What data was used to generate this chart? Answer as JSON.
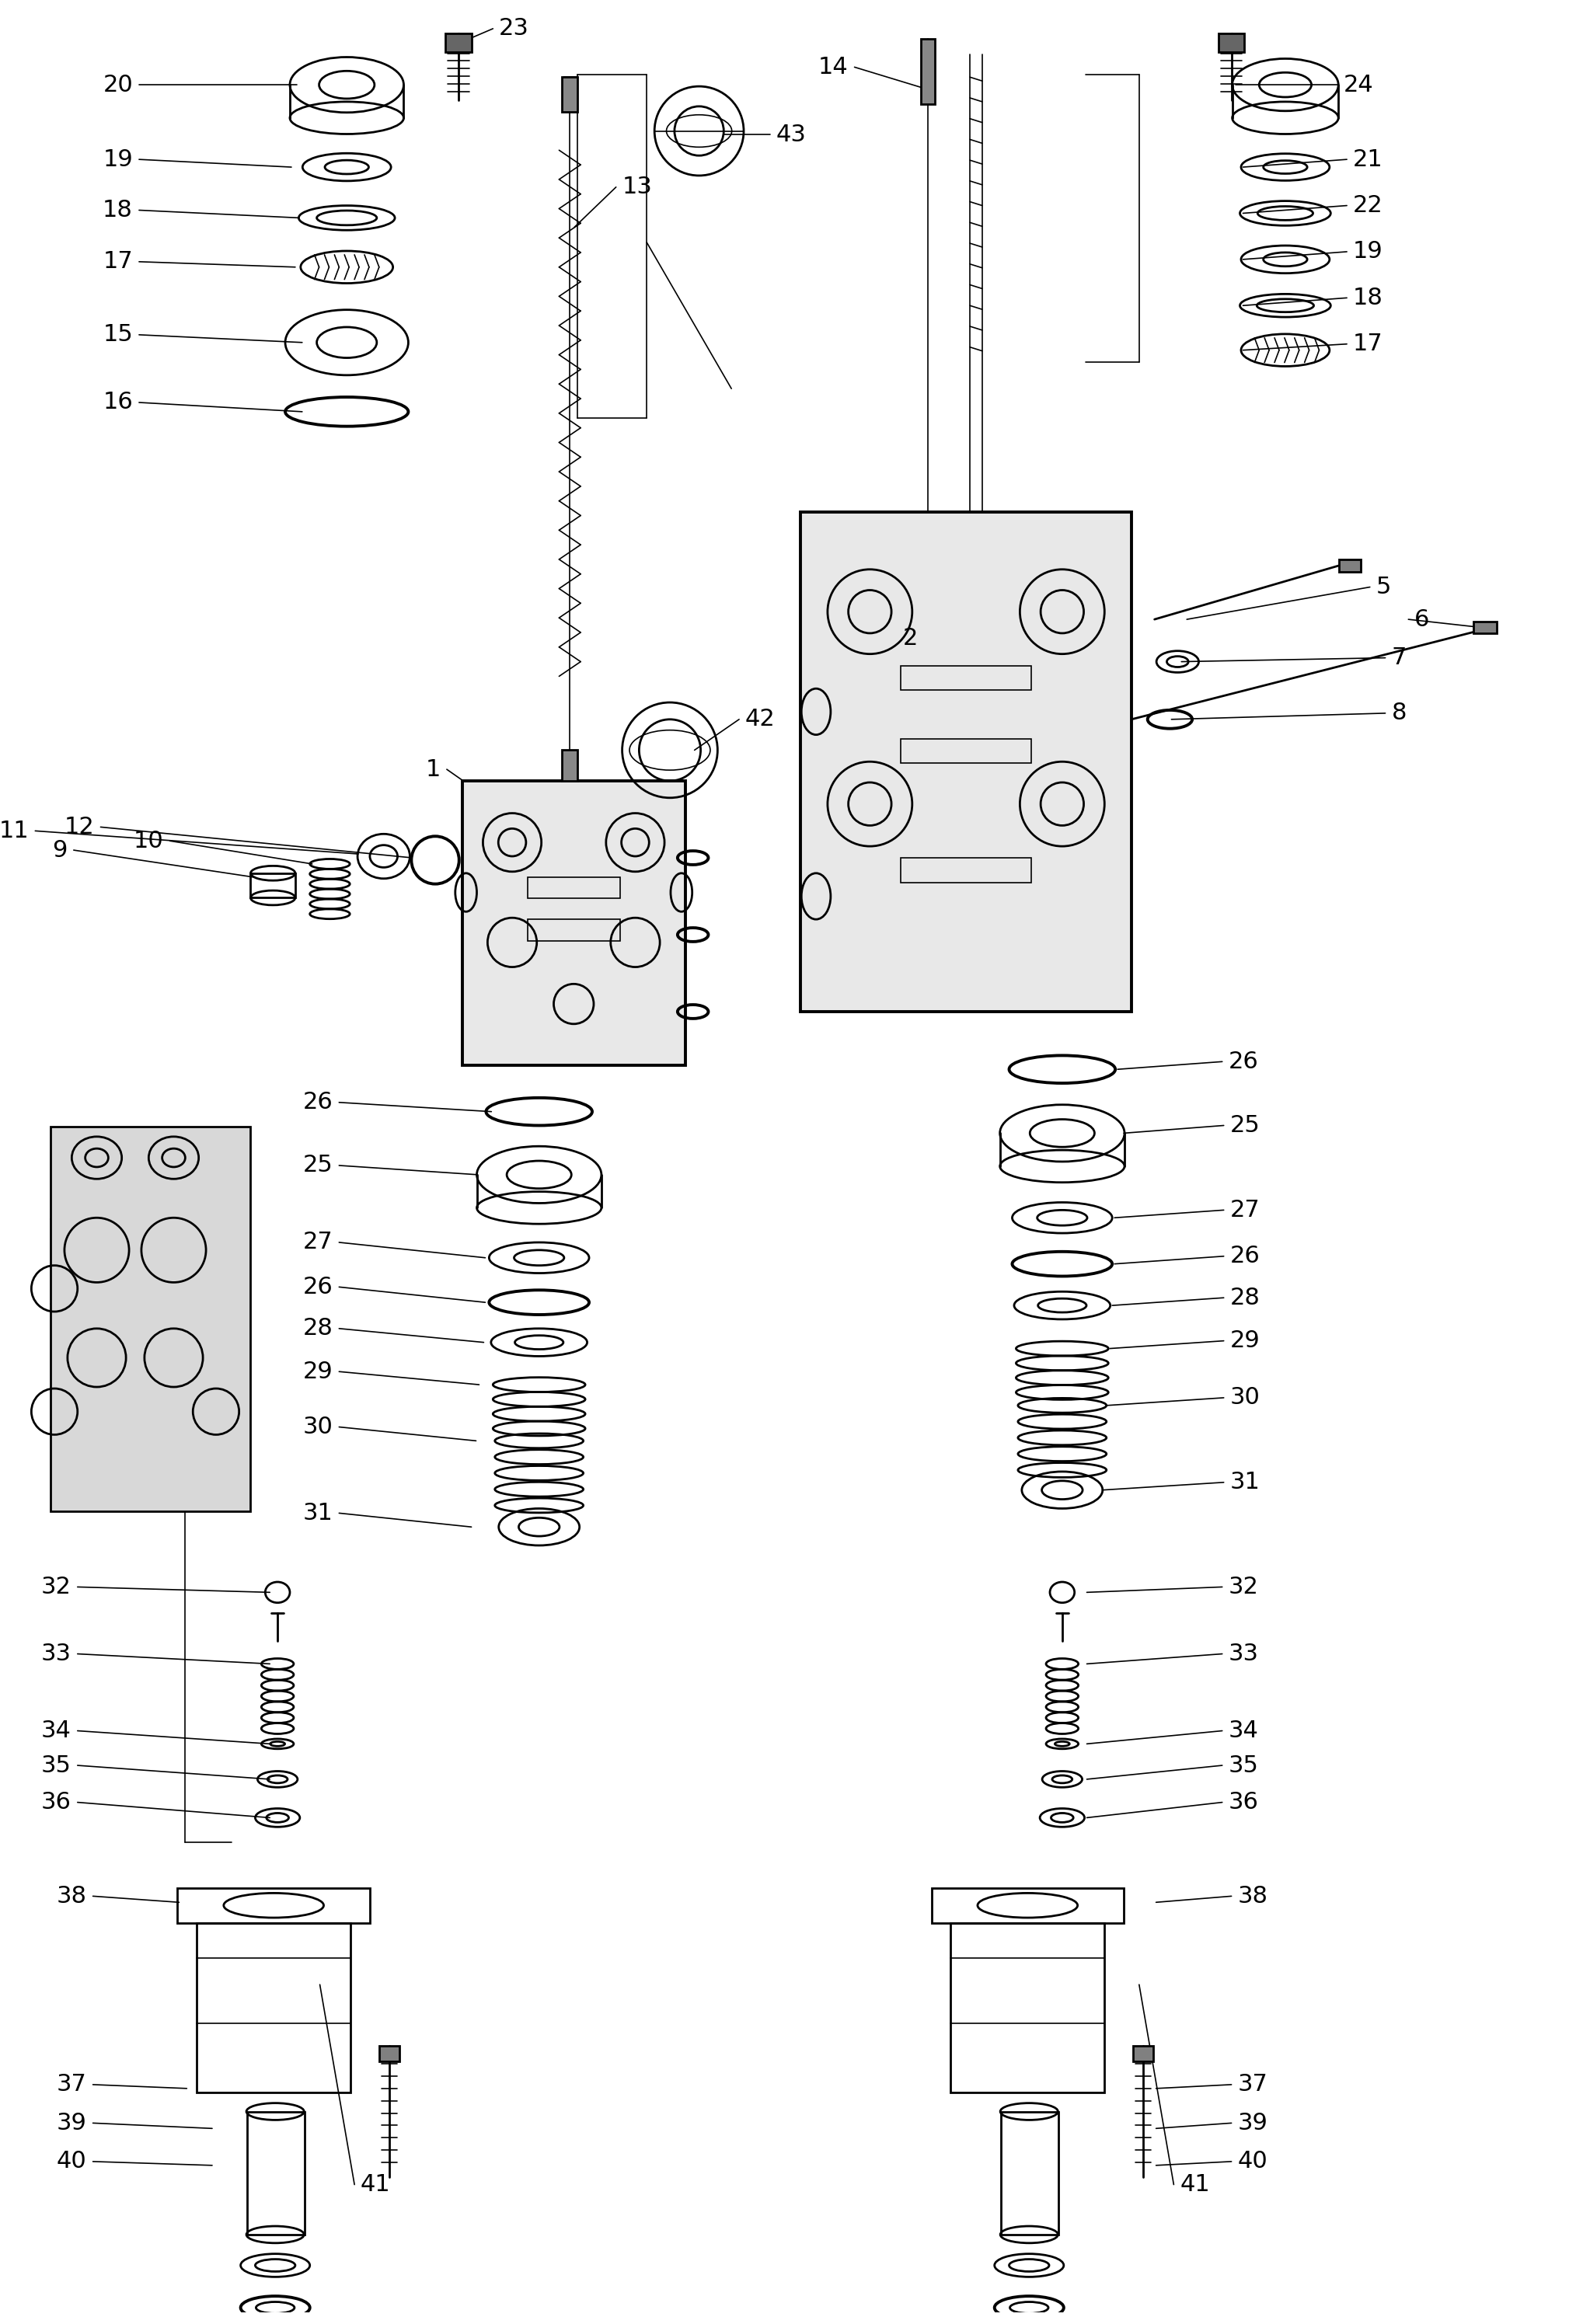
{
  "bg_color": "#ffffff",
  "fig_width": 20.37,
  "fig_height": 29.91
}
